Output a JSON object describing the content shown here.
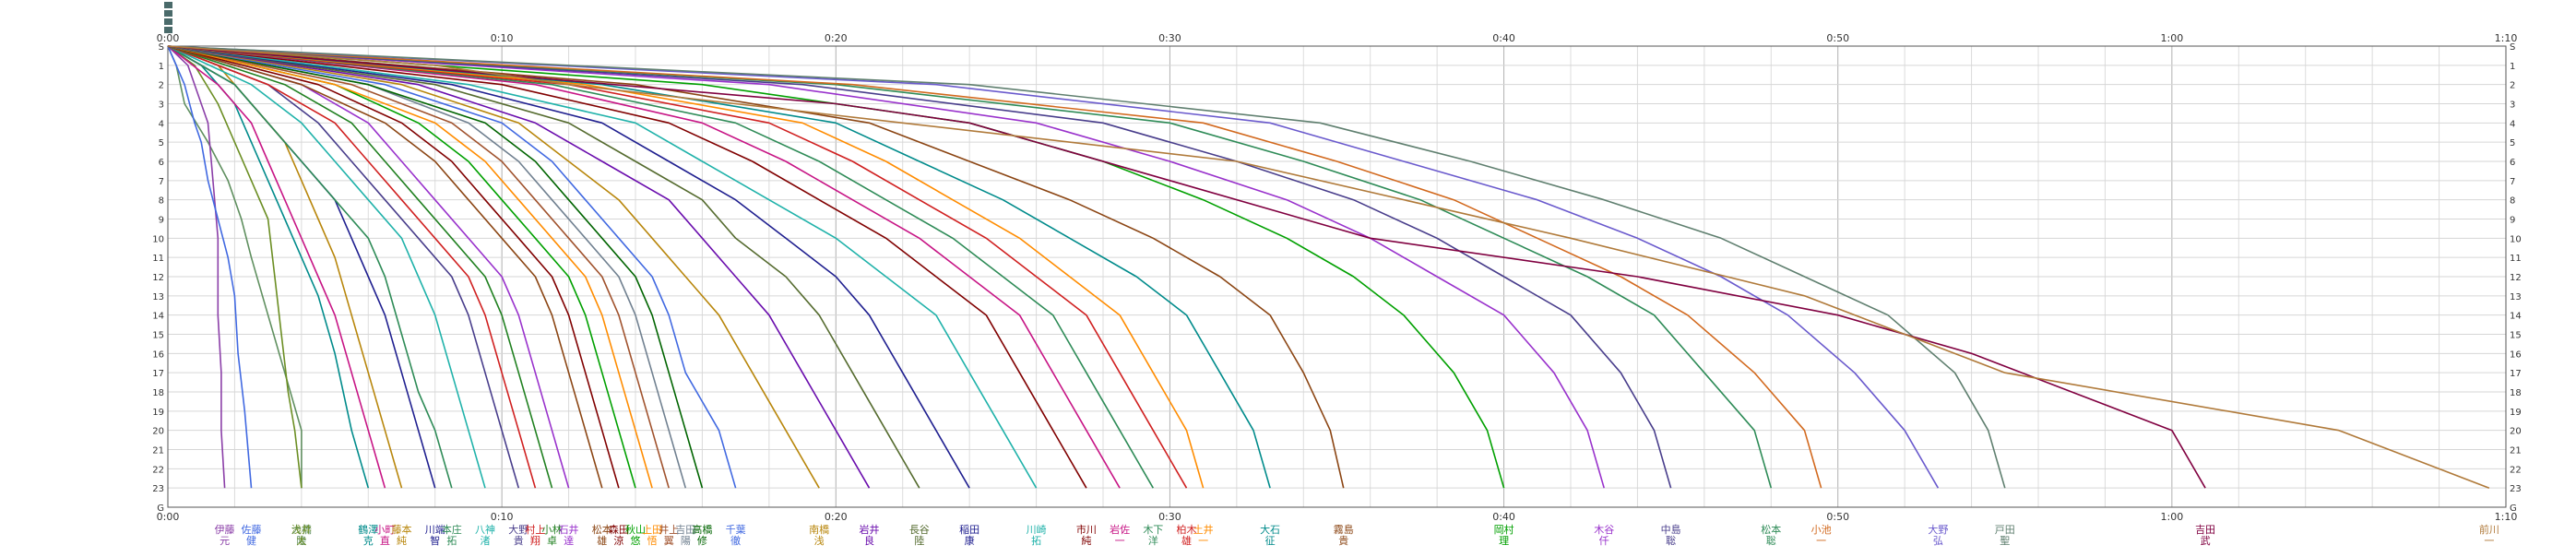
{
  "chart_data": {
    "type": "line",
    "title": "",
    "xlabel": "",
    "ylabel": "",
    "x_unit": "minutes",
    "xlim": [
      0,
      70
    ],
    "x_ticks": [
      "0:00",
      "0:10",
      "0:20",
      "0:30",
      "0:40",
      "0:50",
      "1:00",
      "1:10"
    ],
    "y_ticks": [
      "S",
      "1",
      "2",
      "3",
      "4",
      "5",
      "6",
      "7",
      "8",
      "9",
      "10",
      "11",
      "12",
      "13",
      "14",
      "15",
      "16",
      "17",
      "18",
      "19",
      "20",
      "21",
      "22",
      "23",
      "G"
    ],
    "grid": true,
    "legend": "bottom",
    "palette": [
      "#1f1f8f",
      "#d02020",
      "#208020",
      "#8b4513",
      "#6a0dad",
      "#008b8b",
      "#b8860b",
      "#4169e1",
      "#2e8b57",
      "#c71585",
      "#556b2f",
      "#800000",
      "#00a000",
      "#ff8c00",
      "#483d8b",
      "#a0522d",
      "#20b2aa",
      "#9932cc",
      "#708090",
      "#006400"
    ],
    "series": [
      {
        "name": "大橋\n隆",
        "color": "#5f8f5f",
        "x": [
          0.0,
          0.25,
          0.5,
          1.2,
          1.8,
          2.2,
          2.5,
          3.0,
          3.5,
          4.0,
          4.0
        ],
        "y": [
          0,
          1,
          3,
          5,
          7,
          9,
          11,
          14,
          17,
          20,
          23
        ]
      },
      {
        "name": "伊藤\n元",
        "color": "#8b3fa8",
        "x": [
          0.0,
          0.6,
          1.0,
          1.2,
          1.3,
          1.4,
          1.5,
          1.5,
          1.6,
          1.6,
          1.7
        ],
        "y": [
          0,
          1,
          3,
          4,
          6,
          8,
          10,
          14,
          17,
          20,
          23
        ]
      },
      {
        "name": "佐藤\n健",
        "color": "#4169e1",
        "x": [
          0.0,
          0.5,
          0.8,
          1.0,
          1.2,
          1.5,
          1.8,
          2.0,
          2.1,
          2.3,
          2.5
        ],
        "y": [
          0,
          2,
          4,
          5,
          7,
          9,
          11,
          13,
          16,
          19,
          23
        ]
      },
      {
        "name": "浅井\n太",
        "color": "#6b8e23",
        "x": [
          0.0,
          0.8,
          1.5,
          2.0,
          2.5,
          3.0,
          3.2,
          3.4,
          3.6,
          3.8,
          4.0
        ],
        "y": [
          0,
          1,
          3,
          5,
          7,
          9,
          12,
          15,
          18,
          20,
          23
        ]
      },
      {
        "name": "鶴澤\n克",
        "color": "#008b8b",
        "x": [
          0.0,
          1.0,
          2.0,
          2.5,
          3.0,
          3.5,
          4.0,
          4.5,
          5.0,
          5.5,
          6.0
        ],
        "y": [
          0,
          1,
          3,
          5,
          7,
          9,
          11,
          13,
          16,
          20,
          23
        ]
      },
      {
        "name": "小町\n直",
        "color": "#c71585",
        "x": [
          0.0,
          1.5,
          2.5,
          3.0,
          3.5,
          4.0,
          4.5,
          5.0,
          5.5,
          6.0,
          6.5
        ],
        "y": [
          0,
          2,
          4,
          6,
          8,
          10,
          12,
          14,
          17,
          20,
          23
        ]
      },
      {
        "name": "川端\n智",
        "color": "#1f1f8f",
        "x": [
          0.0,
          2.0,
          3.0,
          4.0,
          5.0,
          5.5,
          6.0,
          6.5,
          7.0,
          7.5,
          8.0
        ],
        "y": [
          0,
          2,
          4,
          6,
          8,
          10,
          12,
          14,
          17,
          20,
          23
        ]
      },
      {
        "name": "藤本\n純",
        "color": "#b8860b",
        "x": [
          0.0,
          1.5,
          2.5,
          3.5,
          4.0,
          4.5,
          5.0,
          5.5,
          6.0,
          6.5,
          7.0
        ],
        "y": [
          0,
          1,
          3,
          5,
          7,
          9,
          11,
          14,
          17,
          20,
          23
        ]
      },
      {
        "name": "本庄\n拓",
        "color": "#2e8b57",
        "x": [
          0.0,
          2.0,
          3.0,
          4.0,
          5.0,
          6.0,
          6.5,
          7.0,
          7.5,
          8.0,
          8.5
        ],
        "y": [
          0,
          2,
          4,
          6,
          8,
          10,
          12,
          15,
          18,
          20,
          23
        ]
      },
      {
        "name": "八神\n渚",
        "color": "#20b2aa",
        "x": [
          0.0,
          2.5,
          4.0,
          5.0,
          6.0,
          7.0,
          7.5,
          8.0,
          8.5,
          9.0,
          9.5
        ],
        "y": [
          0,
          2,
          4,
          6,
          8,
          10,
          12,
          14,
          17,
          20,
          23
        ]
      },
      {
        "name": "大野\n貴",
        "color": "#483d8b",
        "x": [
          0.0,
          3.0,
          4.5,
          5.5,
          6.5,
          7.5,
          8.5,
          9.0,
          9.5,
          10.0,
          10.5
        ],
        "y": [
          0,
          2,
          4,
          6,
          8,
          10,
          12,
          14,
          17,
          20,
          23
        ]
      },
      {
        "name": "村上\n翔",
        "color": "#d02020",
        "x": [
          0.0,
          3.0,
          5.0,
          6.0,
          7.0,
          8.0,
          9.0,
          9.5,
          10.0,
          10.5,
          11.0
        ],
        "y": [
          0,
          2,
          4,
          6,
          8,
          10,
          12,
          14,
          17,
          20,
          23
        ]
      },
      {
        "name": "小林\n卓",
        "color": "#208020",
        "x": [
          0.0,
          3.5,
          5.5,
          6.5,
          7.5,
          8.5,
          9.5,
          10.0,
          10.5,
          11.0,
          11.5
        ],
        "y": [
          0,
          2,
          4,
          6,
          8,
          10,
          12,
          14,
          17,
          20,
          23
        ]
      },
      {
        "name": "石井\n達",
        "color": "#9932cc",
        "x": [
          0.0,
          4.0,
          6.0,
          7.0,
          8.0,
          9.0,
          10.0,
          10.5,
          11.0,
          11.5,
          12.0
        ],
        "y": [
          0,
          2,
          4,
          6,
          8,
          10,
          12,
          14,
          17,
          20,
          23
        ]
      },
      {
        "name": "松本\n雄",
        "color": "#8b4513",
        "x": [
          0.0,
          4.0,
          6.5,
          8.0,
          9.0,
          10.0,
          11.0,
          11.5,
          12.0,
          12.5,
          13.0
        ],
        "y": [
          0,
          2,
          4,
          6,
          8,
          10,
          12,
          14,
          17,
          20,
          23
        ]
      },
      {
        "name": "森田\n涼",
        "color": "#800000",
        "x": [
          0.0,
          4.5,
          7.0,
          8.5,
          9.5,
          10.5,
          11.5,
          12.0,
          12.5,
          13.0,
          13.5
        ],
        "y": [
          0,
          2,
          4,
          6,
          8,
          10,
          12,
          14,
          17,
          20,
          23
        ]
      },
      {
        "name": "秋山\n悠",
        "color": "#00a000",
        "x": [
          0.0,
          5.0,
          7.5,
          9.0,
          10.0,
          11.0,
          12.0,
          12.5,
          13.0,
          13.5,
          14.0
        ],
        "y": [
          0,
          2,
          4,
          6,
          8,
          10,
          12,
          14,
          17,
          20,
          23
        ]
      },
      {
        "name": "上田\n悟",
        "color": "#ff8c00",
        "x": [
          0.0,
          5.0,
          8.0,
          9.5,
          10.5,
          11.5,
          12.5,
          13.0,
          13.5,
          14.0,
          14.5
        ],
        "y": [
          0,
          2,
          4,
          6,
          8,
          10,
          12,
          14,
          17,
          20,
          23
        ]
      },
      {
        "name": "井上\n翼",
        "color": "#a0522d",
        "x": [
          0.0,
          5.5,
          8.5,
          10.0,
          11.0,
          12.0,
          13.0,
          13.5,
          14.0,
          14.5,
          15.0
        ],
        "y": [
          0,
          2,
          4,
          6,
          8,
          10,
          12,
          14,
          17,
          20,
          23
        ]
      },
      {
        "name": "吉田\n陽",
        "color": "#708090",
        "x": [
          0.0,
          6.0,
          9.0,
          10.5,
          11.5,
          12.5,
          13.5,
          14.0,
          14.5,
          15.0,
          15.5
        ],
        "y": [
          0,
          2,
          4,
          6,
          8,
          10,
          12,
          14,
          17,
          20,
          23
        ]
      },
      {
        "name": "高橋\n修",
        "color": "#006400",
        "x": [
          0.0,
          6.0,
          9.5,
          11.0,
          12.0,
          13.0,
          14.0,
          14.5,
          15.0,
          15.5,
          16.0
        ],
        "y": [
          0,
          2,
          4,
          6,
          8,
          10,
          12,
          14,
          17,
          20,
          23
        ]
      },
      {
        "name": "千葉\n徹",
        "color": "#4169e1",
        "x": [
          0.0,
          6.5,
          10.0,
          11.5,
          12.5,
          13.5,
          14.5,
          15.0,
          15.5,
          16.5,
          17.0
        ],
        "y": [
          0,
          2,
          4,
          6,
          8,
          10,
          12,
          14,
          17,
          20,
          23
        ]
      },
      {
        "name": "南橋\n浅",
        "color": "#b8860b",
        "x": [
          0.0,
          7.0,
          10.5,
          12.0,
          13.5,
          14.5,
          15.5,
          16.5,
          17.5,
          18.5,
          19.5
        ],
        "y": [
          0,
          2,
          4,
          6,
          8,
          10,
          12,
          14,
          17,
          20,
          23
        ]
      },
      {
        "name": "岩井\n良",
        "color": "#6a0dad",
        "x": [
          0.0,
          7.5,
          11.0,
          13.0,
          15.0,
          16.0,
          17.0,
          18.0,
          19.0,
          20.0,
          21.0
        ],
        "y": [
          0,
          2,
          4,
          6,
          8,
          10,
          12,
          14,
          17,
          20,
          23
        ]
      },
      {
        "name": "長谷\n陸",
        "color": "#556b2f",
        "x": [
          0.0,
          8.0,
          12.0,
          14.0,
          16.0,
          17.0,
          18.5,
          19.5,
          20.5,
          21.5,
          22.5
        ],
        "y": [
          0,
          2,
          4,
          6,
          8,
          10,
          12,
          14,
          17,
          20,
          23
        ]
      },
      {
        "name": "稲田\n康",
        "color": "#1f1f8f",
        "x": [
          0.0,
          8.5,
          13.0,
          15.0,
          17.0,
          18.5,
          20.0,
          21.0,
          22.0,
          23.0,
          24.0
        ],
        "y": [
          0,
          2,
          4,
          6,
          8,
          10,
          12,
          14,
          17,
          20,
          23
        ]
      },
      {
        "name": "川崎\n拓",
        "color": "#20b2aa",
        "x": [
          0.0,
          9.0,
          14.0,
          16.0,
          18.0,
          20.0,
          21.5,
          23.0,
          24.0,
          25.0,
          26.0
        ],
        "y": [
          0,
          2,
          4,
          6,
          8,
          10,
          12,
          14,
          17,
          20,
          23
        ]
      },
      {
        "name": "市川\n純",
        "color": "#800000",
        "x": [
          0.0,
          10.0,
          15.0,
          17.5,
          19.5,
          21.5,
          23.0,
          24.5,
          25.5,
          26.5,
          27.5
        ],
        "y": [
          0,
          2,
          4,
          6,
          8,
          10,
          12,
          14,
          17,
          20,
          23
        ]
      },
      {
        "name": "岩佐\n一",
        "color": "#c71585",
        "x": [
          0.0,
          11.0,
          16.0,
          18.5,
          20.5,
          22.5,
          24.0,
          25.5,
          26.5,
          27.5,
          28.5
        ],
        "y": [
          0,
          2,
          4,
          6,
          8,
          10,
          12,
          14,
          17,
          20,
          23
        ]
      },
      {
        "name": "木下\n洋",
        "color": "#2e8b57",
        "x": [
          0.0,
          11.5,
          17.0,
          19.5,
          21.5,
          23.5,
          25.0,
          26.5,
          27.5,
          28.5,
          29.5
        ],
        "y": [
          0,
          2,
          4,
          6,
          8,
          10,
          12,
          14,
          17,
          20,
          23
        ]
      },
      {
        "name": "柏木\n雄",
        "color": "#d02020",
        "x": [
          0.0,
          12.0,
          18.0,
          20.5,
          22.5,
          24.5,
          26.0,
          27.5,
          28.5,
          29.5,
          30.5
        ],
        "y": [
          0,
          2,
          4,
          6,
          8,
          10,
          12,
          14,
          17,
          20,
          23
        ]
      },
      {
        "name": "土井\n一",
        "color": "#ff8c00",
        "x": [
          0.0,
          12.5,
          19.0,
          21.5,
          23.5,
          25.5,
          27.0,
          28.5,
          29.5,
          30.5,
          31.0
        ],
        "y": [
          0,
          2,
          4,
          6,
          8,
          10,
          12,
          14,
          17,
          20,
          23
        ]
      },
      {
        "name": "大石\n征",
        "color": "#008b8b",
        "x": [
          0.0,
          13.0,
          20.0,
          22.5,
          25.0,
          27.0,
          29.0,
          30.5,
          31.5,
          32.5,
          33.0
        ],
        "y": [
          0,
          2,
          4,
          6,
          8,
          10,
          12,
          14,
          17,
          20,
          23
        ]
      },
      {
        "name": "霧島\n貴",
        "color": "#8b4513",
        "x": [
          0.0,
          14.0,
          21.0,
          24.0,
          27.0,
          29.5,
          31.5,
          33.0,
          34.0,
          34.8,
          35.2
        ],
        "y": [
          0,
          2,
          4,
          6,
          8,
          10,
          12,
          14,
          17,
          20,
          23
        ]
      },
      {
        "name": "岡村\n理",
        "color": "#00a000",
        "x": [
          0.0,
          16.0,
          24.0,
          28.0,
          31.0,
          33.5,
          35.5,
          37.0,
          38.5,
          39.5,
          40.0
        ],
        "y": [
          0,
          2,
          4,
          6,
          8,
          10,
          12,
          14,
          17,
          20,
          23
        ]
      },
      {
        "name": "木谷\n仟",
        "color": "#9932cc",
        "x": [
          0.0,
          18.0,
          26.0,
          30.0,
          33.5,
          36.0,
          38.0,
          40.0,
          41.5,
          42.5,
          43.0
        ],
        "y": [
          0,
          2,
          4,
          6,
          8,
          10,
          12,
          14,
          17,
          20,
          23
        ]
      },
      {
        "name": "中島\n聡",
        "color": "#483d8b",
        "x": [
          0.0,
          19.0,
          28.0,
          32.0,
          35.5,
          38.0,
          40.0,
          42.0,
          43.5,
          44.5,
          45.0
        ],
        "y": [
          0,
          2,
          4,
          6,
          8,
          10,
          12,
          14,
          17,
          20,
          23
        ]
      },
      {
        "name": "松本\n聡",
        "color": "#2e8b57",
        "x": [
          0.0,
          20.0,
          30.0,
          34.0,
          37.5,
          40.0,
          42.5,
          44.5,
          46.0,
          47.5,
          48.0
        ],
        "y": [
          0,
          2,
          4,
          6,
          8,
          10,
          12,
          14,
          17,
          20,
          23
        ]
      },
      {
        "name": "小池\n一",
        "color": "#d2691e",
        "x": [
          0.0,
          20.5,
          31.0,
          35.0,
          38.5,
          41.0,
          43.5,
          45.5,
          47.5,
          49.0,
          49.5
        ],
        "y": [
          0,
          2,
          4,
          6,
          8,
          10,
          12,
          14,
          17,
          20,
          23
        ]
      },
      {
        "name": "大野\n弘",
        "color": "#6a5acd",
        "x": [
          0.0,
          23.0,
          33.0,
          37.0,
          41.0,
          44.0,
          46.5,
          48.5,
          50.5,
          52.0,
          53.0
        ],
        "y": [
          0,
          2,
          4,
          6,
          8,
          10,
          12,
          14,
          17,
          20,
          23
        ]
      },
      {
        "name": "戸田\n聖",
        "color": "#5f7f6f",
        "x": [
          0.0,
          24.0,
          34.5,
          39.0,
          43.0,
          46.5,
          49.0,
          51.5,
          53.5,
          54.5,
          55.0
        ],
        "y": [
          0,
          2,
          4,
          6,
          8,
          10,
          12,
          14,
          17,
          20,
          23
        ]
      },
      {
        "name": "吉田\n武",
        "color": "#800040",
        "x": [
          0.0,
          20.0,
          24.0,
          30.0,
          36.0,
          44.0,
          50.0,
          54.0,
          57.0,
          60.0,
          61.0
        ],
        "y": [
          0,
          3,
          4,
          7,
          10,
          12,
          14,
          16,
          18,
          20,
          23
        ]
      },
      {
        "name": "前川\n一",
        "color": "#b07a3a",
        "x": [
          0.0,
          8.0,
          12.0,
          17.0,
          22.0,
          32.0,
          42.0,
          49.0,
          55.0,
          65.0,
          69.5
        ],
        "y": [
          0,
          1,
          2,
          3,
          4,
          6,
          10,
          13,
          17,
          20,
          23
        ]
      }
    ]
  }
}
